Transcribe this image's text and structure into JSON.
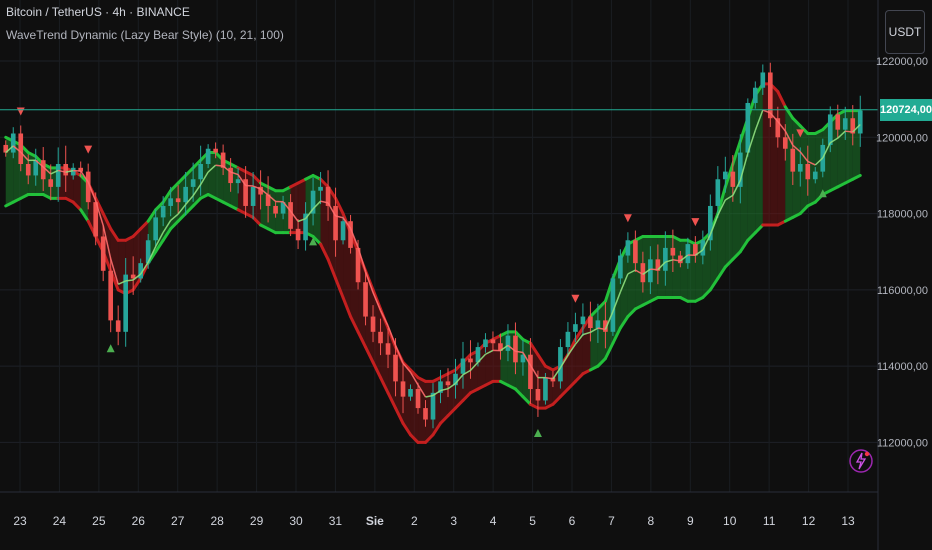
{
  "header": {
    "title": "Bitcoin / TetherUS · 4h · BINANCE",
    "indicator": "WaveTrend Dynamic (Lazy Bear Style) (10, 21, 100)"
  },
  "currency_button": "USDT",
  "last_price_label": "120724,00",
  "colors": {
    "background": "#0f0f0f",
    "bull": "#26a69a",
    "bear": "#ef5350",
    "band_green": "#22c13a",
    "band_red": "#c41f1f",
    "signal_line": "#ff6d6d",
    "signal_line_up": "#8fe07f",
    "price_line": "#22ab94"
  },
  "chart_data": {
    "type": "candlestick",
    "title": "Bitcoin / TetherUS · 4h · BINANCE",
    "y_ticks": [
      {
        "value": 112000,
        "label": "112000,00"
      },
      {
        "value": 114000,
        "label": "114000,00"
      },
      {
        "value": 116000,
        "label": "116000,00"
      },
      {
        "value": 118000,
        "label": "118000,00"
      },
      {
        "value": 120000,
        "label": "120000,00"
      },
      {
        "value": 122000,
        "label": "122000,00"
      }
    ],
    "ylim": [
      110700,
      123600
    ],
    "last_price": 120724,
    "x_ticks": [
      "23",
      "24",
      "25",
      "26",
      "27",
      "28",
      "29",
      "30",
      "31",
      "Sie",
      "2",
      "3",
      "4",
      "5",
      "6",
      "7",
      "8",
      "9",
      "10",
      "11",
      "12",
      "13"
    ],
    "x_tick_bold": "Sie",
    "grid": true,
    "closes": [
      119600,
      120100,
      119300,
      119000,
      119400,
      118900,
      118700,
      119300,
      119000,
      119200,
      119100,
      118300,
      117400,
      116500,
      115200,
      114900,
      116400,
      116300,
      116700,
      117300,
      117900,
      118200,
      118400,
      118300,
      118700,
      118900,
      119300,
      119700,
      119600,
      119200,
      118800,
      118900,
      118200,
      118700,
      118500,
      118200,
      118000,
      118300,
      117600,
      117300,
      118000,
      118600,
      118700,
      118200,
      117300,
      117800,
      117100,
      116200,
      115300,
      114900,
      114600,
      114300,
      113600,
      113200,
      113400,
      112900,
      112600,
      113300,
      113600,
      113500,
      113800,
      114200,
      114100,
      114500,
      114700,
      114600,
      114400,
      114800,
      114100,
      114300,
      113400,
      113100,
      113700,
      113600,
      114500,
      114900,
      115100,
      115300,
      115000,
      115200,
      114900,
      116300,
      116900,
      117300,
      116700,
      116200,
      116800,
      116500,
      117100,
      116900,
      116700,
      117200,
      116900,
      117300,
      118200,
      118900,
      119100,
      118700,
      119600,
      120900,
      121300,
      121700,
      120500,
      120000,
      119700,
      119100,
      119300,
      118900,
      119100,
      119800,
      120600,
      120200,
      120500,
      120100,
      120700
    ],
    "bands": {
      "upper": [
        120000,
        119900,
        119800,
        119600,
        119500,
        119300,
        119200,
        119200,
        119200,
        119100,
        119000,
        118800,
        118400,
        118000,
        117600,
        117300,
        117300,
        117400,
        117600,
        117800,
        118100,
        118300,
        118600,
        118800,
        119000,
        119200,
        119400,
        119600,
        119600,
        119400,
        119300,
        119200,
        119100,
        119000,
        118800,
        118700,
        118600,
        118600,
        118700,
        118800,
        118900,
        119000,
        118900,
        118700,
        118400,
        118000,
        117500,
        117000,
        116500,
        116000,
        115500,
        115000,
        114500,
        114100,
        113900,
        113700,
        113600,
        113600,
        113700,
        113800,
        113900,
        114100,
        114300,
        114400,
        114600,
        114700,
        114800,
        114900,
        114900,
        114700,
        114600,
        114300,
        114000,
        113900,
        114000,
        114300,
        114700,
        115000,
        115300,
        115500,
        115700,
        116300,
        116800,
        117200,
        117300,
        117400,
        117400,
        117400,
        117400,
        117400,
        117300,
        117300,
        117200,
        117300,
        117500,
        118000,
        118700,
        119300,
        119900,
        120500,
        121100,
        121400,
        121400,
        121200,
        120800,
        120500,
        120300,
        120100,
        120100,
        120200,
        120400,
        120600,
        120700,
        120700,
        120700
      ],
      "lower": [
        118200,
        118300,
        118400,
        118500,
        118500,
        118500,
        118400,
        118400,
        118400,
        118300,
        118100,
        117800,
        117400,
        117000,
        116500,
        116000,
        115900,
        116000,
        116300,
        116700,
        117000,
        117300,
        117600,
        117800,
        118000,
        118200,
        118400,
        118500,
        118400,
        118300,
        118200,
        118100,
        118000,
        117900,
        117700,
        117600,
        117500,
        117500,
        117500,
        117500,
        117500,
        117400,
        117200,
        116800,
        116300,
        115800,
        115300,
        114900,
        114500,
        114100,
        113700,
        113300,
        112900,
        112500,
        112200,
        112000,
        112000,
        112200,
        112500,
        112700,
        112900,
        113100,
        113300,
        113400,
        113500,
        113600,
        113600,
        113500,
        113400,
        113200,
        113000,
        112900,
        112900,
        113000,
        113200,
        113400,
        113600,
        113800,
        113900,
        114000,
        114200,
        114600,
        115000,
        115300,
        115500,
        115600,
        115700,
        115800,
        115800,
        115800,
        115800,
        115700,
        115700,
        115800,
        116000,
        116300,
        116600,
        116800,
        117000,
        117300,
        117500,
        117700,
        117700,
        117700,
        117800,
        117900,
        118000,
        118200,
        118300,
        118500,
        118600,
        118700,
        118800,
        118900,
        119000
      ],
      "regime": [
        "up",
        "up",
        "up",
        "up",
        "up",
        "up",
        "up",
        "dn",
        "dn",
        "dn",
        "up",
        "dn",
        "dn",
        "dn",
        "dn",
        "dn",
        "dn",
        "dn",
        "dn",
        "up",
        "up",
        "up",
        "up",
        "up",
        "up",
        "up",
        "up",
        "up",
        "up",
        "up",
        "up",
        "dn",
        "dn",
        "dn",
        "up",
        "up",
        "up",
        "up",
        "dn",
        "dn",
        "up",
        "up",
        "dn",
        "dn",
        "dn",
        "dn",
        "dn",
        "dn",
        "dn",
        "dn",
        "dn",
        "dn",
        "dn",
        "dn",
        "dn",
        "dn",
        "dn",
        "dn",
        "dn",
        "dn",
        "dn",
        "dn",
        "dn",
        "dn",
        "dn",
        "dn",
        "up",
        "up",
        "up",
        "up",
        "dn",
        "dn",
        "dn",
        "dn",
        "dn",
        "dn",
        "dn",
        "dn",
        "up",
        "up",
        "up",
        "up",
        "up",
        "up",
        "up",
        "up",
        "up",
        "up",
        "up",
        "up",
        "up",
        "up",
        "up",
        "up",
        "up",
        "up",
        "up",
        "up",
        "up",
        "up",
        "up",
        "dn",
        "dn",
        "dn",
        "up",
        "up",
        "up",
        "up",
        "up",
        "up",
        "up",
        "up",
        "up",
        "up",
        "up",
        "up",
        "up"
      ]
    },
    "signals": [
      {
        "type": "sell",
        "index": 4
      },
      {
        "type": "sell",
        "index": 21
      },
      {
        "type": "buy",
        "index": 27
      },
      {
        "type": "buy",
        "index": 79
      },
      {
        "type": "sell",
        "index": 145
      },
      {
        "type": "buy",
        "index": 136
      },
      {
        "type": "sell",
        "index": 158
      },
      {
        "type": "sell",
        "index": 176
      },
      {
        "type": "sell",
        "index": 203
      },
      {
        "type": "buy",
        "index": 209
      }
    ]
  }
}
